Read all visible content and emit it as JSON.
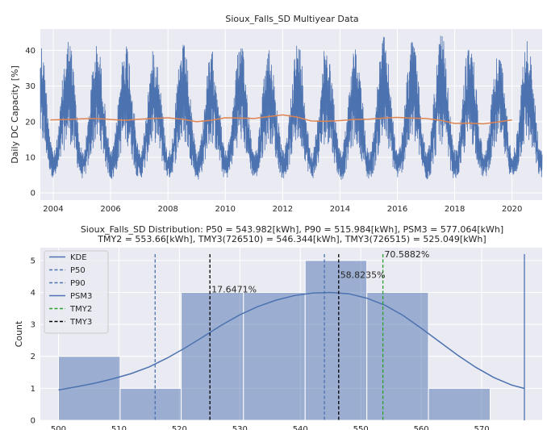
{
  "chart_data": [
    {
      "type": "line",
      "title": "Sioux_Falls_SD Multiyear Data",
      "xlabel": "",
      "ylabel": "Daily DC Capacity [%]",
      "xlim": [
        2003.55,
        2021.05
      ],
      "ylim": [
        -2,
        46
      ],
      "x_ticks": [
        "2004",
        "2006",
        "2008",
        "2010",
        "2012",
        "2014",
        "2016",
        "2018",
        "2020"
      ],
      "y_ticks": [
        "0",
        "10",
        "20",
        "30",
        "40"
      ],
      "grid": true,
      "colors": {
        "daily": "#4c72b0",
        "rolling_mean": "#dd8452"
      },
      "series": [
        {
          "note_type": "daily-values",
          "seasonal_peaks": [
            44,
            44,
            42,
            43,
            41,
            42,
            40,
            42,
            41,
            43,
            42,
            41,
            44,
            43,
            45,
            43,
            40,
            43
          ],
          "seasonal_troughs": [
            1,
            1,
            1,
            0.5,
            1,
            1,
            0.5,
            1,
            1,
            1,
            1,
            0.5,
            1,
            1,
            0.5,
            1,
            1,
            1
          ]
        },
        {
          "note_type": "rolling-mean",
          "x": [
            2003.9,
            2004.5,
            2005.0,
            2005.5,
            2006.0,
            2006.5,
            2007.0,
            2007.5,
            2008.0,
            2008.5,
            2009.0,
            2009.5,
            2010.0,
            2010.5,
            2011.0,
            2011.5,
            2012.0,
            2012.5,
            2013.0,
            2013.5,
            2014.0,
            2014.5,
            2015.0,
            2015.5,
            2016.0,
            2016.5,
            2017.0,
            2017.5,
            2018.0,
            2018.5,
            2019.0,
            2019.5,
            2020.0
          ],
          "values": [
            20.5,
            20.6,
            20.8,
            20.9,
            20.6,
            20.4,
            20.7,
            20.9,
            21.1,
            20.7,
            20.0,
            20.4,
            21.1,
            21.0,
            20.9,
            21.4,
            21.9,
            21.3,
            20.2,
            20.1,
            20.3,
            20.6,
            20.7,
            21.0,
            21.2,
            21.0,
            20.9,
            20.4,
            19.5,
            19.6,
            19.4,
            19.9,
            20.5
          ]
        }
      ]
    },
    {
      "type": "bar",
      "title": "Sioux_Falls_SD Distribution: P50 = 543.982[kWh], P90 = 515.984[kWh], PSM3 = 577.064[kWh]",
      "subtitle": "TMY2 = 553.66[kWh], TMY3(726510) = 546.344[kWh], TMY3(726515) = 525.049[kWh]",
      "xlabel": "",
      "ylabel": "Count",
      "xlim": [
        497,
        580
      ],
      "ylim": [
        0,
        5.4
      ],
      "x_ticks": [
        "500",
        "510",
        "520",
        "530",
        "540",
        "550",
        "560",
        "570"
      ],
      "y_ticks": [
        "0",
        "1",
        "2",
        "3",
        "4",
        "5"
      ],
      "grid": true,
      "legend_position": "top-left",
      "legend": [
        "KDE",
        "P50",
        "P90",
        "PSM3",
        "TMY2",
        "TMY3"
      ],
      "bins": [
        {
          "from": 500.0,
          "to": 510.2,
          "count": 2
        },
        {
          "from": 510.2,
          "to": 520.3,
          "count": 1
        },
        {
          "from": 520.3,
          "to": 530.6,
          "count": 4
        },
        {
          "from": 530.6,
          "to": 540.8,
          "count": 4
        },
        {
          "from": 540.8,
          "to": 551.0,
          "count": 5
        },
        {
          "from": 551.0,
          "to": 561.2,
          "count": 4
        },
        {
          "from": 561.2,
          "to": 571.4,
          "count": 1
        }
      ],
      "kde": {
        "x": [
          500,
          503,
          506,
          509,
          512,
          515,
          518,
          521,
          524,
          527,
          530,
          533,
          536,
          539,
          542,
          545,
          548,
          551,
          554,
          557,
          560,
          563,
          566,
          569,
          572,
          575,
          577
        ],
        "y": [
          0.95,
          1.05,
          1.16,
          1.3,
          1.46,
          1.67,
          1.95,
          2.27,
          2.62,
          2.98,
          3.3,
          3.56,
          3.76,
          3.9,
          3.98,
          4.0,
          3.96,
          3.82,
          3.6,
          3.28,
          2.88,
          2.46,
          2.04,
          1.66,
          1.34,
          1.1,
          1.0
        ]
      },
      "vlines": [
        {
          "name": "P50",
          "x": 543.982,
          "style": "dashed",
          "color": "#4c72b0"
        },
        {
          "name": "P90",
          "x": 515.984,
          "style": "dashed",
          "color": "#4c72b0"
        },
        {
          "name": "PSM3",
          "x": 577.064,
          "style": "solid",
          "color": "#4c72b0"
        },
        {
          "name": "TMY2",
          "x": 553.66,
          "style": "dashed",
          "color": "#2ca02c"
        },
        {
          "name": "TMY3",
          "x": 546.344,
          "style": "dashed",
          "color": "#000000"
        },
        {
          "name": "TMY3",
          "x": 525.049,
          "style": "dashed",
          "color": "#000000"
        }
      ],
      "annotations": [
        {
          "text": "17.6471%",
          "x": 525.3,
          "y": 4.0
        },
        {
          "text": "58.8235%",
          "x": 546.6,
          "y": 4.45
        },
        {
          "text": "70.5882%",
          "x": 553.9,
          "y": 5.1
        }
      ]
    }
  ]
}
